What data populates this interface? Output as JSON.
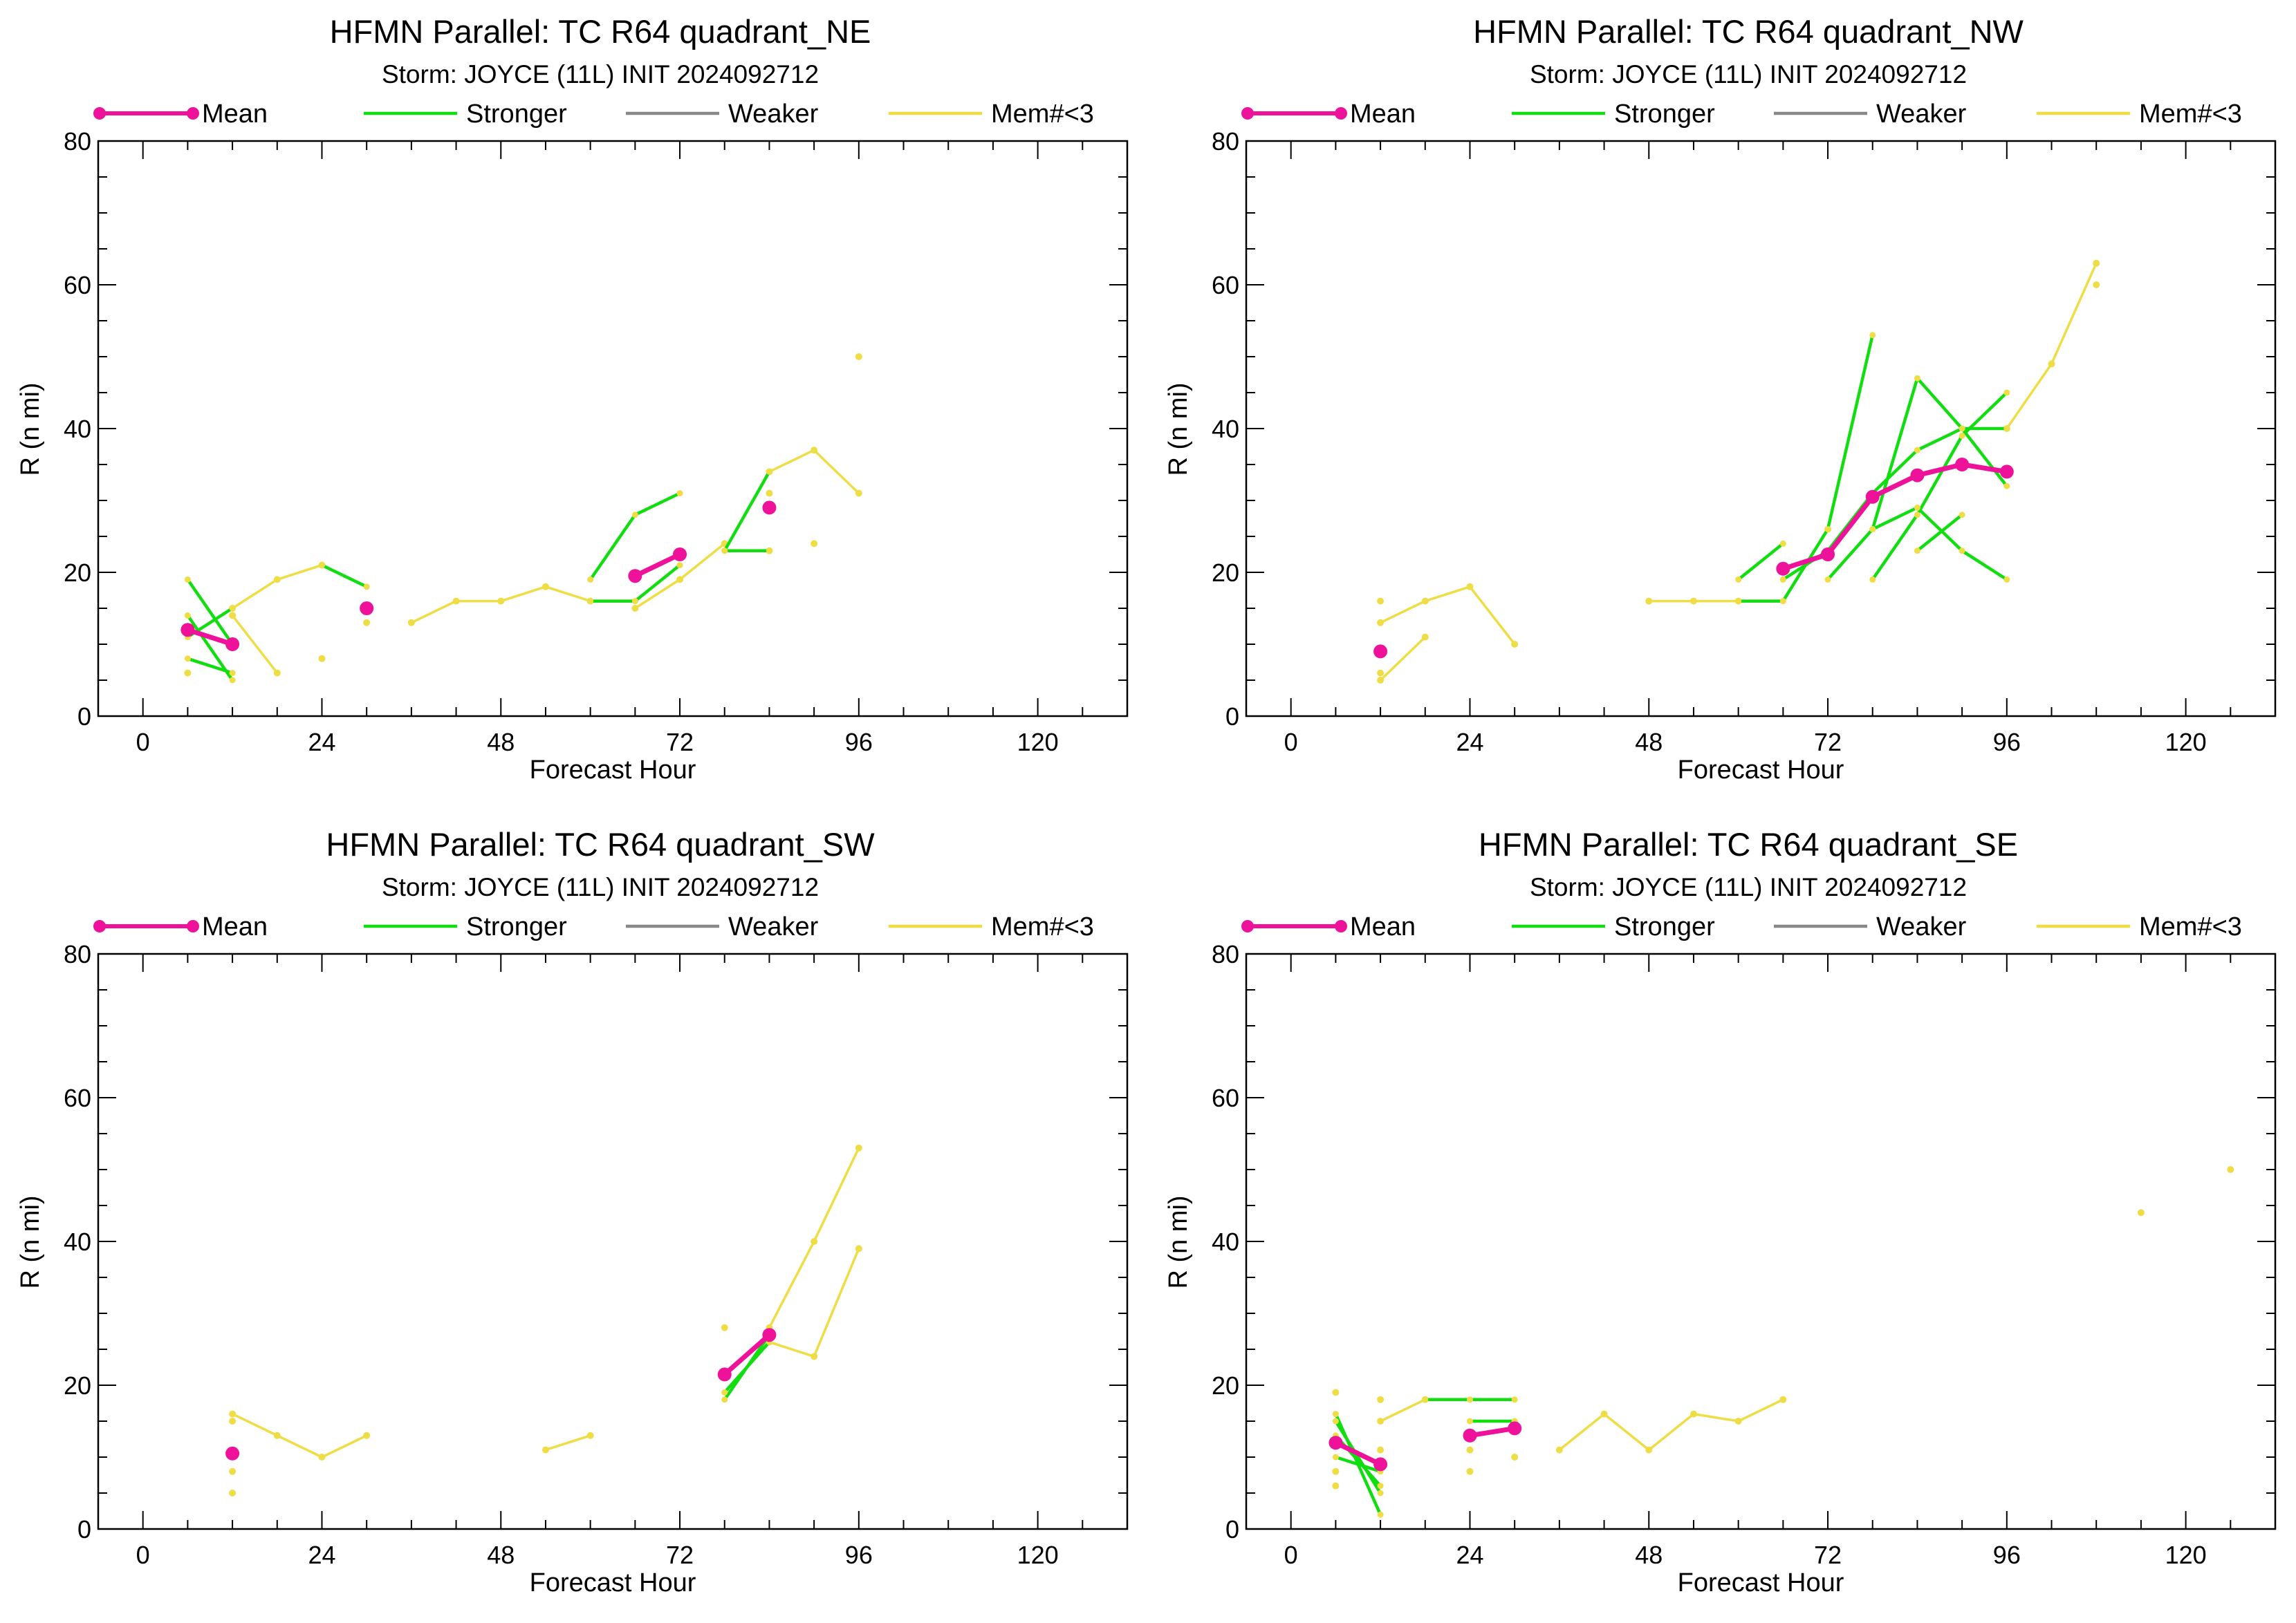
{
  "colors": {
    "mean": "#ee1199",
    "stronger": "#11dd11",
    "weaker": "#888888",
    "mem": "#eedd44",
    "axis": "#000000"
  },
  "legend": [
    "Mean",
    "Stronger",
    "Weaker",
    "Mem#<3"
  ],
  "chart_data": [
    {
      "type": "line",
      "title": "HFMN Parallel: TC  R64 quadrant_NE",
      "subtitle": "Storm: JOYCE (11L) INIT 2024092712",
      "xlabel": "Forecast Hour",
      "ylabel": "R (n mi)",
      "xlim": [
        -6,
        132
      ],
      "ylim": [
        0,
        80
      ],
      "xticks": [
        0,
        24,
        48,
        72,
        96,
        120
      ],
      "yticks": [
        0,
        20,
        40,
        60,
        80
      ],
      "series": [
        {
          "name": "Mean",
          "segments": [
            [
              [
                6,
                12
              ],
              [
                12,
                10
              ]
            ],
            [
              [
                66,
                19.5
              ],
              [
                72,
                22.5
              ]
            ]
          ],
          "points": [
            [
              30,
              15
            ],
            [
              84,
              29
            ]
          ]
        },
        {
          "name": "Stronger",
          "segments": [
            [
              [
                6,
                19
              ],
              [
                12,
                10
              ]
            ],
            [
              [
                6,
                14
              ],
              [
                12,
                5
              ]
            ],
            [
              [
                6,
                8
              ],
              [
                12,
                6
              ]
            ],
            [
              [
                6,
                11
              ],
              [
                12,
                15
              ]
            ],
            [
              [
                24,
                21
              ],
              [
                30,
                18
              ]
            ],
            [
              [
                60,
                19
              ],
              [
                66,
                28
              ],
              [
                72,
                31
              ]
            ],
            [
              [
                60,
                16
              ],
              [
                66,
                16
              ],
              [
                72,
                21
              ]
            ],
            [
              [
                78,
                23
              ],
              [
                84,
                23
              ]
            ],
            [
              [
                78,
                23
              ],
              [
                84,
                34
              ]
            ]
          ]
        },
        {
          "name": "Mem#<3",
          "segments": [
            [
              [
                12,
                15
              ],
              [
                18,
                19
              ],
              [
                24,
                21
              ]
            ],
            [
              [
                12,
                14
              ],
              [
                18,
                6
              ]
            ],
            [
              [
                36,
                13
              ],
              [
                42,
                16
              ],
              [
                48,
                16
              ],
              [
                54,
                18
              ],
              [
                60,
                16
              ]
            ],
            [
              [
                66,
                15
              ],
              [
                72,
                19
              ],
              [
                78,
                24
              ]
            ],
            [
              [
                84,
                34
              ],
              [
                90,
                37
              ],
              [
                96,
                31
              ]
            ]
          ],
          "points": [
            [
              6,
              6
            ],
            [
              24,
              8
            ],
            [
              30,
              13
            ],
            [
              84,
              31
            ],
            [
              84,
              23
            ],
            [
              90,
              24
            ],
            [
              96,
              50
            ]
          ]
        }
      ]
    },
    {
      "type": "line",
      "title": "HFMN Parallel: TC  R64 quadrant_NW",
      "subtitle": "Storm: JOYCE (11L) INIT 2024092712",
      "xlabel": "Forecast Hour",
      "ylabel": "R (n mi)",
      "xlim": [
        -6,
        132
      ],
      "ylim": [
        0,
        80
      ],
      "xticks": [
        0,
        24,
        48,
        72,
        96,
        120
      ],
      "yticks": [
        0,
        20,
        40,
        60,
        80
      ],
      "series": [
        {
          "name": "Mean",
          "segments": [
            [
              [
                66,
                20.5
              ],
              [
                72,
                22.5
              ],
              [
                78,
                30.5
              ],
              [
                84,
                33.5
              ],
              [
                90,
                35
              ],
              [
                96,
                34
              ]
            ]
          ],
          "points": [
            [
              12,
              9
            ]
          ]
        },
        {
          "name": "Stronger",
          "segments": [
            [
              [
                60,
                19
              ],
              [
                66,
                24
              ]
            ],
            [
              [
                60,
                16
              ],
              [
                66,
                16
              ],
              [
                72,
                26
              ],
              [
                78,
                53
              ]
            ],
            [
              [
                66,
                19
              ],
              [
                72,
                23
              ],
              [
                78,
                31
              ],
              [
                84,
                37
              ],
              [
                90,
                40
              ],
              [
                96,
                40
              ]
            ],
            [
              [
                72,
                19
              ],
              [
                78,
                26
              ],
              [
                84,
                47
              ],
              [
                90,
                40
              ],
              [
                96,
                32
              ]
            ],
            [
              [
                78,
                19
              ],
              [
                84,
                28
              ],
              [
                90,
                39
              ],
              [
                96,
                45
              ]
            ],
            [
              [
                78,
                26
              ],
              [
                84,
                29
              ],
              [
                90,
                23
              ],
              [
                96,
                19
              ]
            ],
            [
              [
                84,
                23
              ],
              [
                90,
                28
              ]
            ]
          ]
        },
        {
          "name": "Mem#<3",
          "segments": [
            [
              [
                12,
                13
              ],
              [
                18,
                16
              ],
              [
                24,
                18
              ],
              [
                30,
                10
              ]
            ],
            [
              [
                12,
                5
              ],
              [
                18,
                11
              ]
            ],
            [
              [
                48,
                16
              ],
              [
                54,
                16
              ],
              [
                60,
                16
              ]
            ],
            [
              [
                96,
                40
              ],
              [
                102,
                49
              ],
              [
                108,
                63
              ]
            ]
          ],
          "points": [
            [
              12,
              16
            ],
            [
              12,
              6
            ],
            [
              72,
              26
            ],
            [
              108,
              60
            ]
          ]
        }
      ]
    },
    {
      "type": "line",
      "title": "HFMN Parallel: TC  R64 quadrant_SW",
      "subtitle": "Storm: JOYCE (11L) INIT 2024092712",
      "xlabel": "Forecast Hour",
      "ylabel": "R (n mi)",
      "xlim": [
        -6,
        132
      ],
      "ylim": [
        0,
        80
      ],
      "xticks": [
        0,
        24,
        48,
        72,
        96,
        120
      ],
      "yticks": [
        0,
        20,
        40,
        60,
        80
      ],
      "series": [
        {
          "name": "Mean",
          "segments": [
            [
              [
                78,
                21.5
              ],
              [
                84,
                27
              ]
            ]
          ],
          "points": [
            [
              12,
              10.5
            ]
          ]
        },
        {
          "name": "Stronger",
          "segments": [
            [
              [
                78,
                18
              ],
              [
                84,
                27
              ]
            ],
            [
              [
                78,
                19
              ],
              [
                84,
                26
              ]
            ]
          ]
        },
        {
          "name": "Mem#<3",
          "segments": [
            [
              [
                12,
                16
              ],
              [
                18,
                13
              ],
              [
                24,
                10
              ],
              [
                30,
                13
              ]
            ],
            [
              [
                54,
                11
              ],
              [
                60,
                13
              ]
            ],
            [
              [
                84,
                26
              ],
              [
                90,
                24
              ],
              [
                96,
                39
              ]
            ],
            [
              [
                84,
                28
              ],
              [
                90,
                40
              ],
              [
                96,
                53
              ]
            ]
          ],
          "points": [
            [
              12,
              15
            ],
            [
              12,
              8
            ],
            [
              12,
              5
            ],
            [
              78,
              28
            ]
          ]
        }
      ]
    },
    {
      "type": "line",
      "title": "HFMN Parallel: TC  R64 quadrant_SE",
      "subtitle": "Storm: JOYCE (11L) INIT 2024092712",
      "xlabel": "Forecast Hour",
      "ylabel": "R (n mi)",
      "xlim": [
        -6,
        132
      ],
      "ylim": [
        0,
        80
      ],
      "xticks": [
        0,
        24,
        48,
        72,
        96,
        120
      ],
      "yticks": [
        0,
        20,
        40,
        60,
        80
      ],
      "series": [
        {
          "name": "Mean",
          "segments": [
            [
              [
                6,
                12
              ],
              [
                12,
                9
              ]
            ],
            [
              [
                24,
                13
              ],
              [
                30,
                14
              ]
            ]
          ]
        },
        {
          "name": "Stronger",
          "segments": [
            [
              [
                6,
                16
              ],
              [
                12,
                2
              ]
            ],
            [
              [
                6,
                15
              ],
              [
                12,
                5
              ]
            ],
            [
              [
                6,
                13
              ],
              [
                12,
                6
              ]
            ],
            [
              [
                6,
                10
              ],
              [
                12,
                8
              ]
            ],
            [
              [
                18,
                18
              ],
              [
                24,
                18
              ],
              [
                30,
                18
              ]
            ],
            [
              [
                24,
                15
              ],
              [
                30,
                15
              ]
            ]
          ]
        },
        {
          "name": "Mem#<3",
          "segments": [
            [
              [
                12,
                15
              ],
              [
                18,
                18
              ]
            ],
            [
              [
                36,
                11
              ],
              [
                42,
                16
              ],
              [
                48,
                11
              ],
              [
                54,
                16
              ],
              [
                60,
                15
              ],
              [
                66,
                18
              ]
            ]
          ],
          "points": [
            [
              6,
              19
            ],
            [
              6,
              8
            ],
            [
              6,
              6
            ],
            [
              12,
              18
            ],
            [
              12,
              11
            ],
            [
              24,
              11
            ],
            [
              24,
              8
            ],
            [
              30,
              10
            ],
            [
              114,
              44
            ],
            [
              126,
              50
            ]
          ]
        }
      ]
    }
  ]
}
